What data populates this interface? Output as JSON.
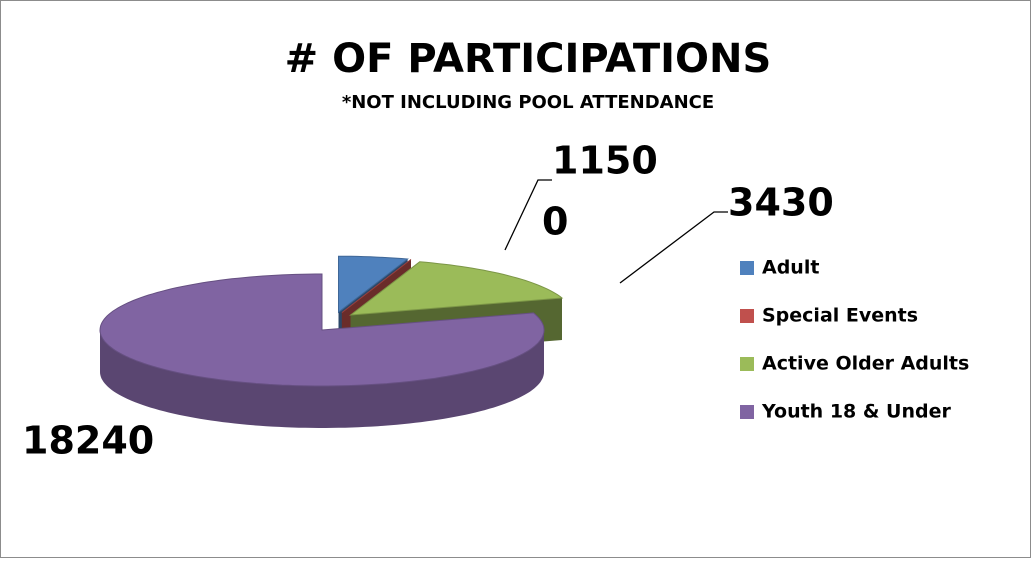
{
  "chart_data": {
    "type": "pie3d",
    "title": "# OF PARTICIPATIONS",
    "subtitle": "*NOT INCLUDING POOL ATTENDANCE",
    "categories": [
      "Adult",
      "Special Events",
      "Active Older Adults",
      "Youth 18 & Under"
    ],
    "values": [
      1150,
      0,
      3430,
      18240
    ],
    "colors": [
      "#4f81bd",
      "#c0504d",
      "#9bbb59",
      "#8064a2"
    ],
    "legend": "right"
  }
}
